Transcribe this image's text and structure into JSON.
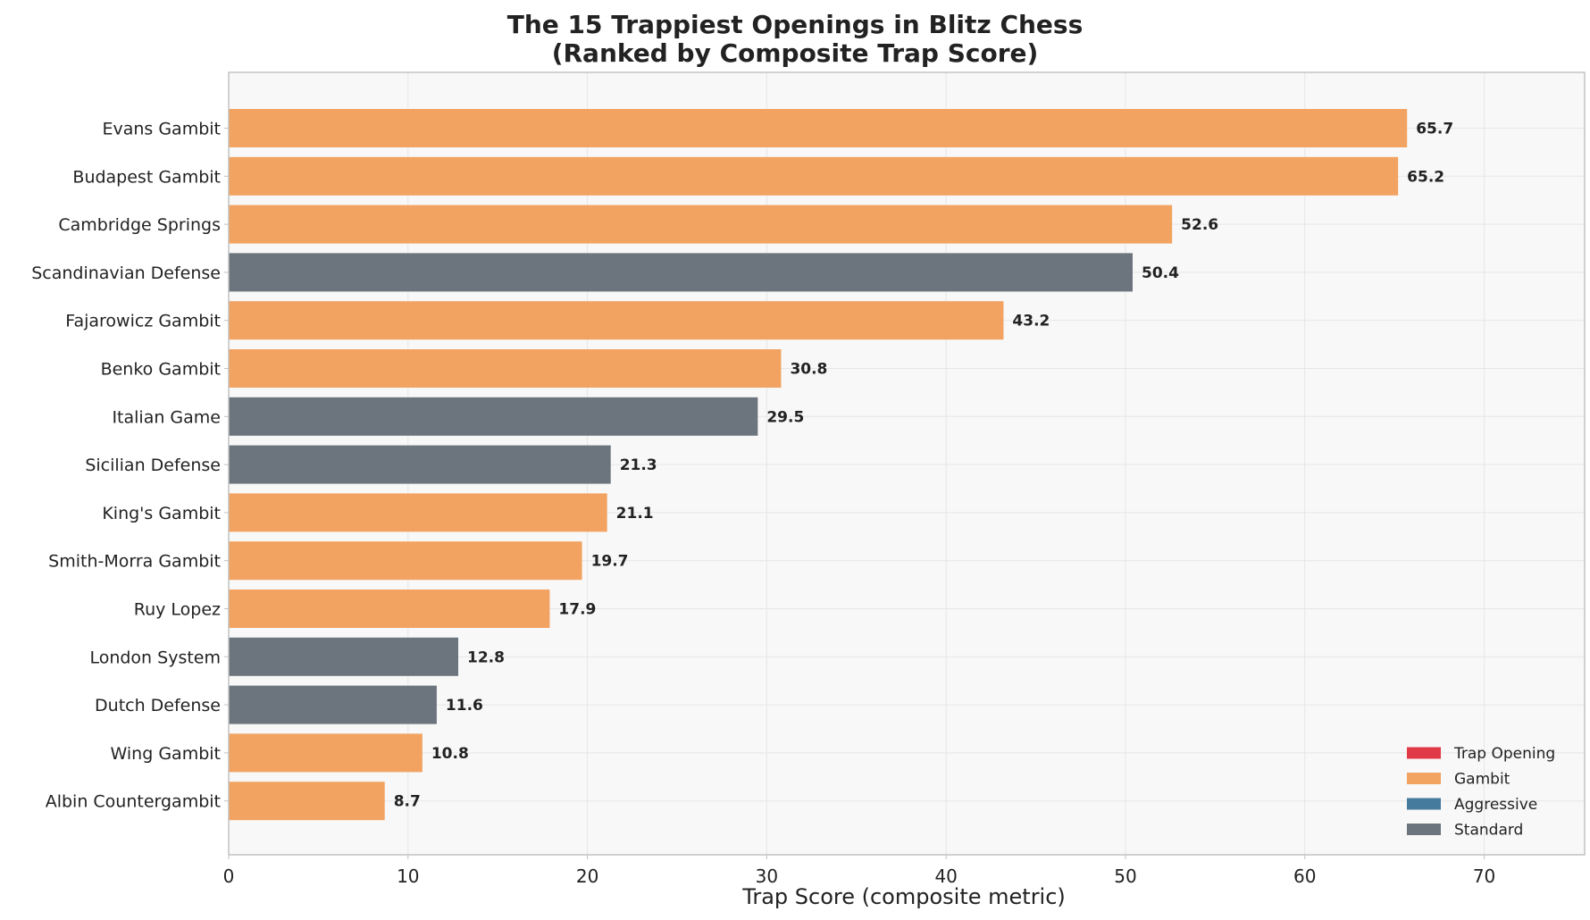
{
  "chart_data": {
    "type": "bar",
    "orientation": "horizontal",
    "title": "The 15 Trappiest Openings in Blitz Chess",
    "subtitle": "(Ranked by Composite Trap Score)",
    "xlabel": "Trap Score (composite metric)",
    "ylabel": "",
    "xlim": [
      0,
      75.6
    ],
    "xticks": [
      "0",
      "10",
      "20",
      "30",
      "40",
      "50",
      "60",
      "70"
    ],
    "grid": true,
    "legend_position": "bottom-right",
    "legend": [
      {
        "label": "Trap Opening",
        "color": "#e03a47"
      },
      {
        "label": "Gambit",
        "color": "#f2a362"
      },
      {
        "label": "Aggressive",
        "color": "#457b9d"
      },
      {
        "label": "Standard",
        "color": "#6c757d"
      }
    ],
    "categories": [
      "Evans Gambit",
      "Budapest Gambit",
      "Cambridge Springs",
      "Scandinavian Defense",
      "Fajarowicz Gambit",
      "Benko Gambit",
      "Italian Game",
      "Sicilian Defense",
      "King's Gambit",
      "Smith-Morra Gambit",
      "Ruy Lopez",
      "London System",
      "Dutch Defense",
      "Wing Gambit",
      "Albin Countergambit"
    ],
    "values": [
      65.7,
      65.2,
      52.6,
      50.4,
      43.2,
      30.8,
      29.5,
      21.3,
      21.1,
      19.7,
      17.9,
      12.8,
      11.6,
      10.8,
      8.7
    ],
    "value_labels": [
      "65.7",
      "65.2",
      "52.6",
      "50.4",
      "43.2",
      "30.8",
      "29.5",
      "21.3",
      "21.1",
      "19.7",
      "17.9",
      "12.8",
      "11.6",
      "10.8",
      "8.7"
    ],
    "bar_categories": [
      "Gambit",
      "Gambit",
      "Gambit",
      "Standard",
      "Gambit",
      "Gambit",
      "Standard",
      "Standard",
      "Gambit",
      "Gambit",
      "Gambit",
      "Standard",
      "Standard",
      "Gambit",
      "Gambit"
    ]
  }
}
